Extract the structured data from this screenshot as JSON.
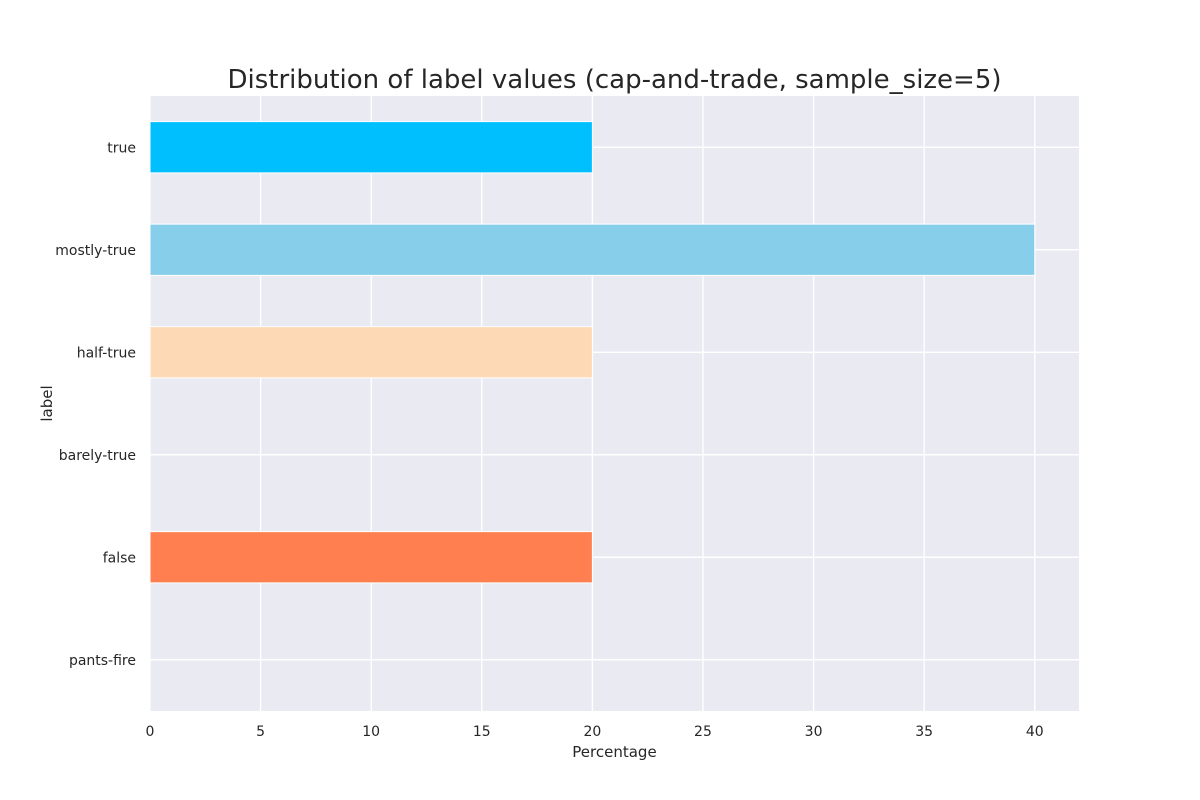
{
  "chart_data": {
    "type": "bar",
    "orientation": "horizontal",
    "title": "Distribution of label values (cap-and-trade, sample_size=5)",
    "xlabel": "Percentage",
    "ylabel": "label",
    "categories": [
      "true",
      "mostly-true",
      "half-true",
      "barely-true",
      "false",
      "pants-fire"
    ],
    "values": [
      20,
      40,
      20,
      0,
      20,
      0
    ],
    "colors": [
      "#00BFFF",
      "#87CEEB",
      "#FDD9B5",
      "#FFA07A",
      "#FF7F50",
      "#FF4500"
    ],
    "xlim": [
      0,
      42
    ],
    "xticks": [
      0,
      5,
      10,
      15,
      20,
      25,
      30,
      35,
      40
    ],
    "grid": true,
    "background": "#EAEAF2",
    "grid_color": "#FFFFFF"
  }
}
